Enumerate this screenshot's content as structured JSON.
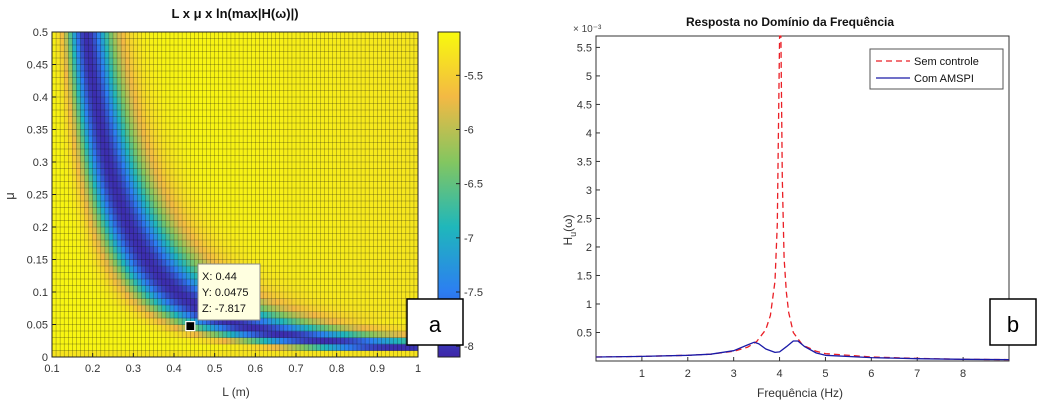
{
  "chart_data": [
    {
      "type": "heatmap",
      "title": "L x μ x ln(max|H(ω)|)",
      "xlabel": "L (m)",
      "ylabel": "μ",
      "xlim": [
        0.1,
        1.0
      ],
      "ylim": [
        0,
        0.5
      ],
      "xticks": [
        "0.1",
        "0.2",
        "0.3",
        "0.4",
        "0.5",
        "0.6",
        "0.7",
        "0.8",
        "0.9",
        "1"
      ],
      "yticks": [
        "0",
        "0.05",
        "0.1",
        "0.15",
        "0.2",
        "0.25",
        "0.3",
        "0.35",
        "0.4",
        "0.45",
        "0.5"
      ],
      "grid_x_cells": 90,
      "grid_y_cells": 50,
      "colorbar": {
        "range": [
          -8.1,
          -5.1
        ],
        "ticks": [
          "-8",
          "-7.5",
          "-7",
          "-6.5",
          "-6",
          "-5.5"
        ],
        "colors": [
          "#3e26a8",
          "#2c7ef2",
          "#1fb7bb",
          "#83c660",
          "#f3b944",
          "#f8fa0d"
        ]
      },
      "datatip": {
        "point": [
          0.44,
          0.0475
        ],
        "lines": [
          "X: 0.44",
          "Y: 0.0475",
          "Z: -7.817"
        ]
      },
      "panel_label": "a"
    },
    {
      "type": "line",
      "title": "Resposta no Domínio da Frequência",
      "xlabel": "Frequência (Hz)",
      "ylabel_main": "H",
      "ylabel_sub": "u",
      "ylabel_paren": "(ω)",
      "y_exponent": "× 10⁻³",
      "xlim": [
        0,
        9
      ],
      "ylim": [
        0,
        5.7
      ],
      "xticks": [
        "1",
        "2",
        "3",
        "4",
        "5",
        "6",
        "7",
        "8"
      ],
      "yticks": [
        "0.5",
        "1",
        "1.5",
        "2",
        "2.5",
        "3",
        "3.5",
        "4",
        "4.5",
        "5",
        "5.5"
      ],
      "series": [
        {
          "name": "Sem controle",
          "color": "#ea1e25",
          "dash": "6,4",
          "x": [
            0,
            1,
            2,
            2.5,
            3,
            3.3,
            3.5,
            3.7,
            3.8,
            3.9,
            3.95,
            4.0,
            4.03,
            4.06,
            4.1,
            4.15,
            4.2,
            4.3,
            4.5,
            4.8,
            5,
            6,
            7,
            8,
            9
          ],
          "y": [
            0.07,
            0.08,
            0.1,
            0.12,
            0.17,
            0.24,
            0.34,
            0.55,
            0.8,
            1.4,
            2.4,
            5.7,
            5.7,
            3.2,
            1.8,
            1.2,
            0.85,
            0.5,
            0.28,
            0.17,
            0.13,
            0.07,
            0.045,
            0.03,
            0.025
          ]
        },
        {
          "name": "Com AMSPI",
          "color": "#1a1aa8",
          "dash": "",
          "x": [
            0,
            1,
            2,
            2.5,
            3,
            3.3,
            3.45,
            3.55,
            3.7,
            3.9,
            4.0,
            4.15,
            4.3,
            4.4,
            4.55,
            4.8,
            5,
            6,
            7,
            8,
            9
          ],
          "y": [
            0.07,
            0.08,
            0.1,
            0.12,
            0.18,
            0.28,
            0.33,
            0.3,
            0.21,
            0.15,
            0.16,
            0.25,
            0.35,
            0.35,
            0.25,
            0.14,
            0.1,
            0.06,
            0.04,
            0.03,
            0.025
          ]
        }
      ],
      "legend_position": "top-right",
      "panel_label": "b"
    }
  ]
}
